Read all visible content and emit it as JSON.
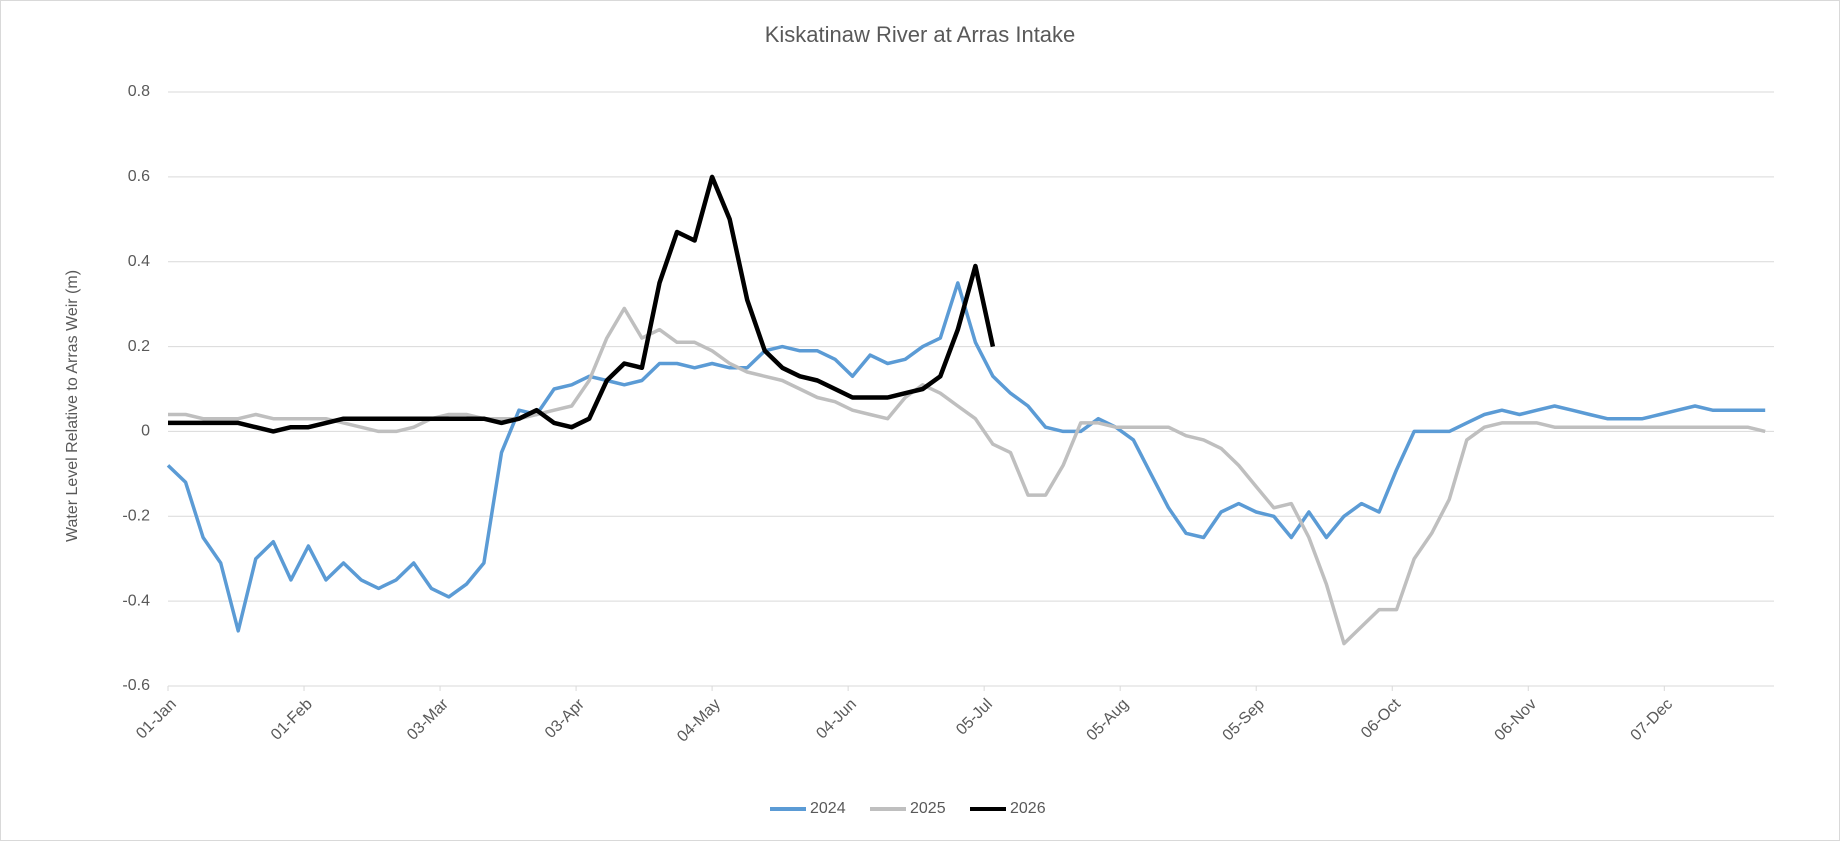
{
  "chart_data": {
    "type": "line",
    "title": "Kiskatinaw River at Arras Intake",
    "y_label": "Water Level Relative to Arras Weir (m)",
    "xlim": [
      0,
      366
    ],
    "xticks": [
      {
        "value": 0,
        "label": "01-Jan"
      },
      {
        "value": 31,
        "label": "01-Feb"
      },
      {
        "value": 62,
        "label": "03-Mar"
      },
      {
        "value": 93,
        "label": "03-Apr"
      },
      {
        "value": 124,
        "label": "04-May"
      },
      {
        "value": 155,
        "label": "04-Jun"
      },
      {
        "value": 186,
        "label": "05-Jul"
      },
      {
        "value": 217,
        "label": "05-Aug"
      },
      {
        "value": 248,
        "label": "05-Sep"
      },
      {
        "value": 279,
        "label": "06-Oct"
      },
      {
        "value": 310,
        "label": "06-Nov"
      },
      {
        "value": 341,
        "label": "07-Dec"
      }
    ],
    "ylim": [
      -0.6,
      0.8
    ],
    "yticks": [
      0.8,
      0.6,
      0.4,
      0.2,
      0,
      -0.2,
      -0.4,
      -0.6
    ],
    "grid": true,
    "legend": "bottom",
    "x": [
      0,
      4,
      8,
      12,
      16,
      20,
      24,
      28,
      32,
      36,
      40,
      44,
      48,
      52,
      56,
      60,
      64,
      68,
      72,
      76,
      80,
      84,
      88,
      92,
      96,
      100,
      104,
      108,
      112,
      116,
      120,
      124,
      128,
      132,
      136,
      140,
      144,
      148,
      152,
      156,
      160,
      164,
      168,
      172,
      176,
      180,
      184,
      188,
      192,
      196,
      200,
      204,
      208,
      212,
      216,
      220,
      224,
      228,
      232,
      236,
      240,
      244,
      248,
      252,
      256,
      260,
      264,
      268,
      272,
      276,
      280,
      284,
      288,
      292,
      296,
      300,
      304,
      308,
      312,
      316,
      320,
      324,
      328,
      332,
      336,
      340,
      344,
      348,
      352,
      356,
      360,
      364
    ],
    "series": [
      {
        "name": "2024",
        "color": "#5b9bd5",
        "values": [
          -0.08,
          -0.12,
          -0.25,
          -0.31,
          -0.47,
          -0.3,
          -0.26,
          -0.35,
          -0.27,
          -0.35,
          -0.31,
          -0.35,
          -0.37,
          -0.35,
          -0.31,
          -0.37,
          -0.39,
          -0.36,
          -0.31,
          -0.05,
          0.05,
          0.04,
          0.1,
          0.11,
          0.13,
          0.12,
          0.11,
          0.12,
          0.16,
          0.16,
          0.15,
          0.16,
          0.15,
          0.15,
          0.19,
          0.2,
          0.19,
          0.19,
          0.17,
          0.13,
          0.18,
          0.16,
          0.17,
          0.2,
          0.22,
          0.35,
          0.21,
          0.13,
          0.09,
          0.06,
          0.01,
          0,
          0,
          0.03,
          0.01,
          -0.02,
          -0.1,
          -0.18,
          -0.24,
          -0.25,
          -0.19,
          -0.17,
          -0.19,
          -0.2,
          -0.25,
          -0.19,
          -0.25,
          -0.2,
          -0.17,
          -0.19,
          -0.09,
          0,
          0,
          0,
          0.02,
          0.04,
          0.05,
          0.04,
          0.05,
          0.06,
          0.05,
          0.04,
          0.03,
          0.03,
          0.03,
          0.04,
          0.05,
          0.06,
          0.05,
          0.05,
          0.05,
          0.05
        ]
      },
      {
        "name": "2025",
        "color": "#bfbfbf",
        "values": [
          0.04,
          0.04,
          0.03,
          0.03,
          0.03,
          0.04,
          0.03,
          0.03,
          0.03,
          0.03,
          0.02,
          0.01,
          0,
          0,
          0.01,
          0.03,
          0.04,
          0.04,
          0.03,
          0.03,
          0.03,
          0.04,
          0.05,
          0.06,
          0.12,
          0.22,
          0.29,
          0.22,
          0.24,
          0.21,
          0.21,
          0.19,
          0.16,
          0.14,
          0.13,
          0.12,
          0.1,
          0.08,
          0.07,
          0.05,
          0.04,
          0.03,
          0.08,
          0.11,
          0.09,
          0.06,
          0.03,
          -0.03,
          -0.05,
          -0.15,
          -0.15,
          -0.08,
          0.02,
          0.02,
          0.01,
          0.01,
          0.01,
          0.01,
          -0.01,
          -0.02,
          -0.04,
          -0.08,
          -0.13,
          -0.18,
          -0.17,
          -0.25,
          -0.36,
          -0.5,
          -0.46,
          -0.42,
          -0.42,
          -0.3,
          -0.24,
          -0.16,
          -0.02,
          0.01,
          0.02,
          0.02,
          0.02,
          0.01,
          0.01,
          0.01,
          0.01,
          0.01,
          0.01,
          0.01,
          0.01,
          0.01,
          0.01,
          0.01,
          0.01,
          0
        ]
      },
      {
        "name": "2026",
        "color": "#000000",
        "values": [
          0.02,
          0.02,
          0.02,
          0.02,
          0.02,
          0.01,
          0,
          0.01,
          0.01,
          0.02,
          0.03,
          0.03,
          0.03,
          0.03,
          0.03,
          0.03,
          0.03,
          0.03,
          0.03,
          0.02,
          0.03,
          0.05,
          0.02,
          0.01,
          0.03,
          0.12,
          0.16,
          0.15,
          0.35,
          0.47,
          0.45,
          0.6,
          0.5,
          0.31,
          0.19,
          0.15,
          0.13,
          0.12,
          0.1,
          0.08,
          0.08,
          0.08,
          0.09,
          0.1,
          0.13,
          0.24,
          0.39,
          0.2,
          null,
          null,
          null,
          null,
          null,
          null,
          null,
          null,
          null,
          null,
          null,
          null,
          null,
          null,
          null,
          null,
          null,
          null,
          null,
          null,
          null,
          null,
          null,
          null,
          null,
          null,
          null,
          null,
          null,
          null,
          null,
          null,
          null,
          null,
          null,
          null,
          null,
          null,
          null,
          null,
          null,
          null,
          null,
          null
        ]
      }
    ]
  }
}
